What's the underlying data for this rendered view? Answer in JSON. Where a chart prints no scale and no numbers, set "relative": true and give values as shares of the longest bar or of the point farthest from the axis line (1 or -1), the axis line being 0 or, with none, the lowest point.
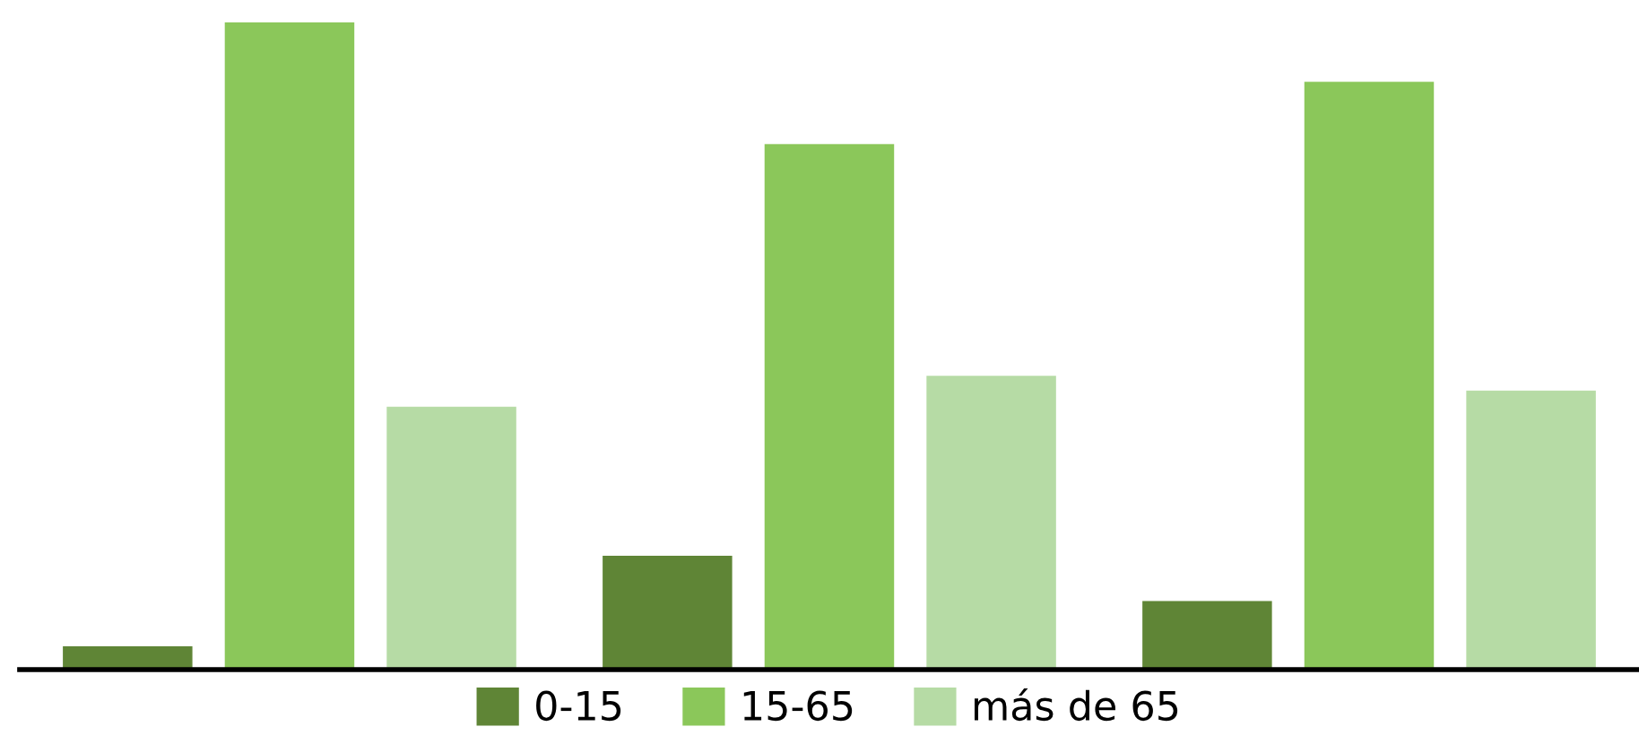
{
  "chart_data": {
    "type": "bar",
    "relative": true,
    "categories": [
      null,
      null,
      null
    ],
    "series": [
      {
        "name": "0-15",
        "color": "#5f8536",
        "values": [
          0.036,
          0.176,
          0.106
        ]
      },
      {
        "name": "15-65",
        "color": "#8bc75a",
        "values": [
          1,
          0.812,
          0.908
        ]
      },
      {
        "name": "más de 65",
        "color": "#b6dba5",
        "values": [
          0.406,
          0.454,
          0.431
        ]
      }
    ],
    "legend": "bottom",
    "grid": false
  }
}
